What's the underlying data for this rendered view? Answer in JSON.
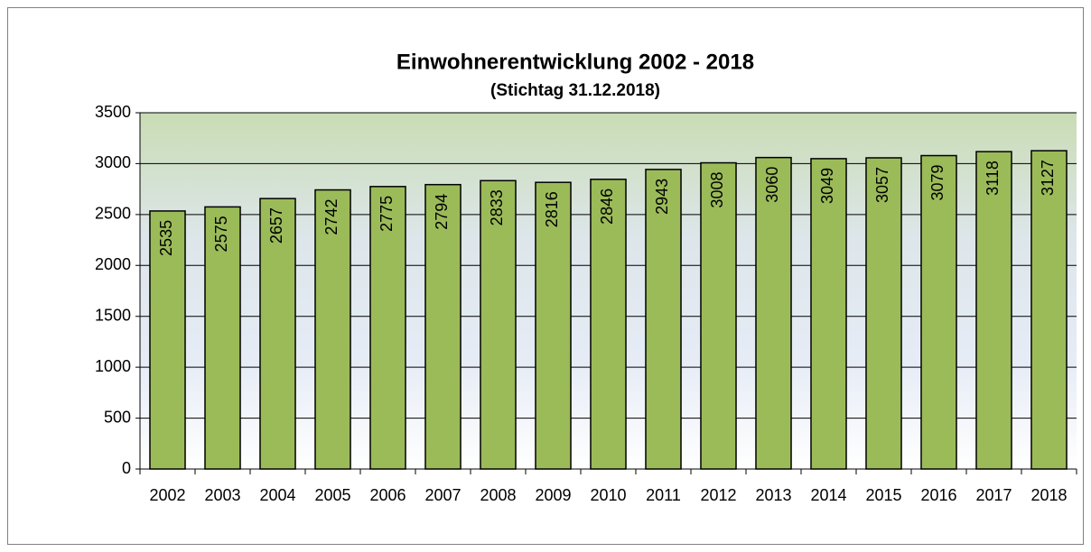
{
  "chart_data": {
    "type": "bar",
    "title": "Einwohnerentwicklung 2002 - 2018",
    "subtitle": "(Stichtag 31.12.2018)",
    "categories": [
      "2002",
      "2003",
      "2004",
      "2005",
      "2006",
      "2007",
      "2008",
      "2009",
      "2010",
      "2011",
      "2012",
      "2013",
      "2014",
      "2015",
      "2016",
      "2017",
      "2018"
    ],
    "values": [
      2535,
      2575,
      2657,
      2742,
      2775,
      2794,
      2833,
      2816,
      2846,
      2943,
      3008,
      3060,
      3049,
      3057,
      3079,
      3118,
      3127
    ],
    "color": "#9bbb59",
    "ylim": [
      0,
      3500
    ],
    "yticks": [
      0,
      500,
      1000,
      1500,
      2000,
      2500,
      3000,
      3500
    ],
    "grid": true
  }
}
